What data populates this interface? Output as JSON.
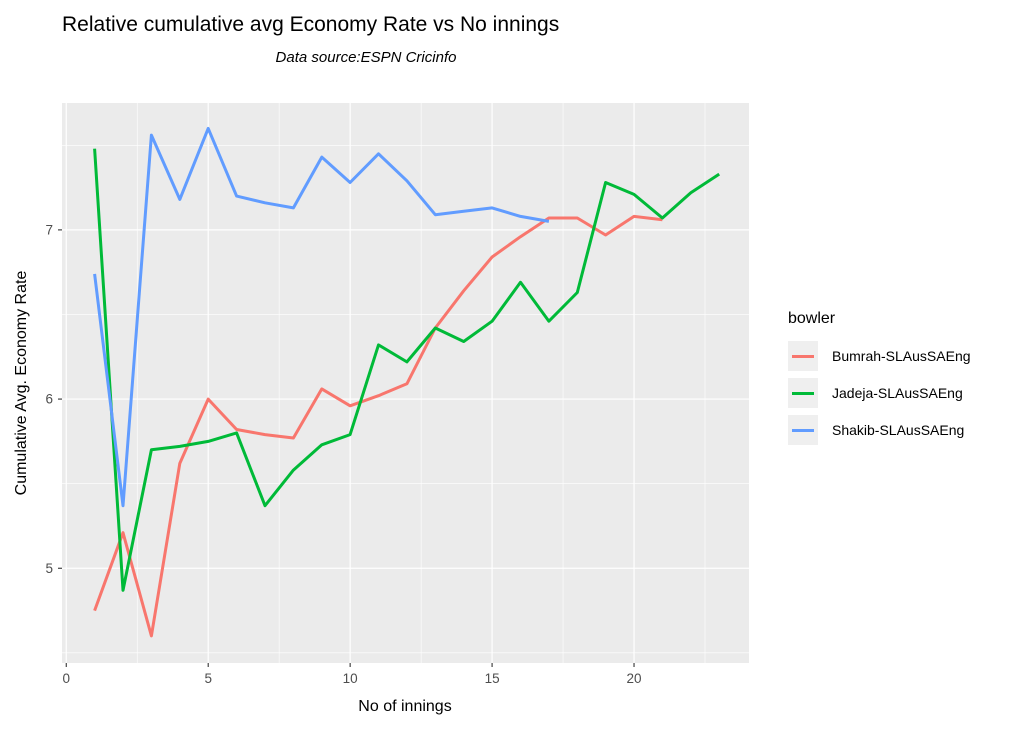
{
  "chart_data": {
    "type": "line",
    "title": "Relative cumulative avg Economy Rate vs No innings",
    "subtitle": "Data source:ESPN Cricinfo",
    "xlabel": "No of innings",
    "ylabel": "Cumulative Avg. Economy Rate",
    "legend_title": "bowler",
    "legend_position": "right",
    "grid": true,
    "xlim": [
      -0.15,
      24.05
    ],
    "ylim": [
      4.44,
      7.75
    ],
    "x_ticks": [
      0,
      5,
      10,
      15,
      20
    ],
    "x_minor_ticks": [
      2.5,
      7.5,
      12.5,
      17.5,
      22.5
    ],
    "y_ticks": [
      5,
      6,
      7
    ],
    "y_minor_ticks": [
      4.5,
      5.5,
      6.5,
      7.5
    ],
    "series": [
      {
        "name": "Bumrah-SLAusSAEng",
        "color": "#F8766D",
        "x": [
          1,
          2,
          3,
          4,
          5,
          6,
          7,
          8,
          9,
          10,
          11,
          12,
          13,
          14,
          15,
          16,
          17,
          18,
          19,
          20,
          21
        ],
        "values": [
          4.75,
          5.21,
          4.6,
          5.62,
          6.0,
          5.82,
          5.79,
          5.77,
          6.06,
          5.96,
          6.02,
          6.09,
          6.42,
          6.64,
          6.84,
          6.96,
          7.07,
          7.07,
          6.97,
          7.08,
          7.06
        ]
      },
      {
        "name": "Jadeja-SLAusSAEng",
        "color": "#00BA38",
        "x": [
          1,
          2,
          3,
          4,
          5,
          6,
          7,
          8,
          9,
          10,
          11,
          12,
          13,
          14,
          15,
          16,
          17,
          18,
          19,
          20,
          21,
          22,
          23
        ],
        "values": [
          7.48,
          4.87,
          5.7,
          5.72,
          5.75,
          5.8,
          5.37,
          5.58,
          5.73,
          5.79,
          6.32,
          6.22,
          6.42,
          6.34,
          6.46,
          6.69,
          6.46,
          6.63,
          7.28,
          7.21,
          7.07,
          7.22,
          7.33
        ]
      },
      {
        "name": "Shakib-SLAusSAEng",
        "color": "#619CFF",
        "x": [
          1,
          2,
          3,
          4,
          5,
          6,
          7,
          8,
          9,
          10,
          11,
          12,
          13,
          14,
          15,
          16,
          17
        ],
        "values": [
          6.74,
          5.37,
          7.56,
          7.18,
          7.6,
          7.2,
          7.16,
          7.13,
          7.43,
          7.28,
          7.45,
          7.29,
          7.09,
          7.11,
          7.13,
          7.08,
          7.05
        ]
      }
    ]
  },
  "colors": {
    "panel_background": "#EBEBEB",
    "gridline": "#FFFFFF",
    "tick_label": "#4D4D4D",
    "tick_mark": "#333333",
    "legend_key_background": "#EFEFEF",
    "text": "#000000"
  }
}
